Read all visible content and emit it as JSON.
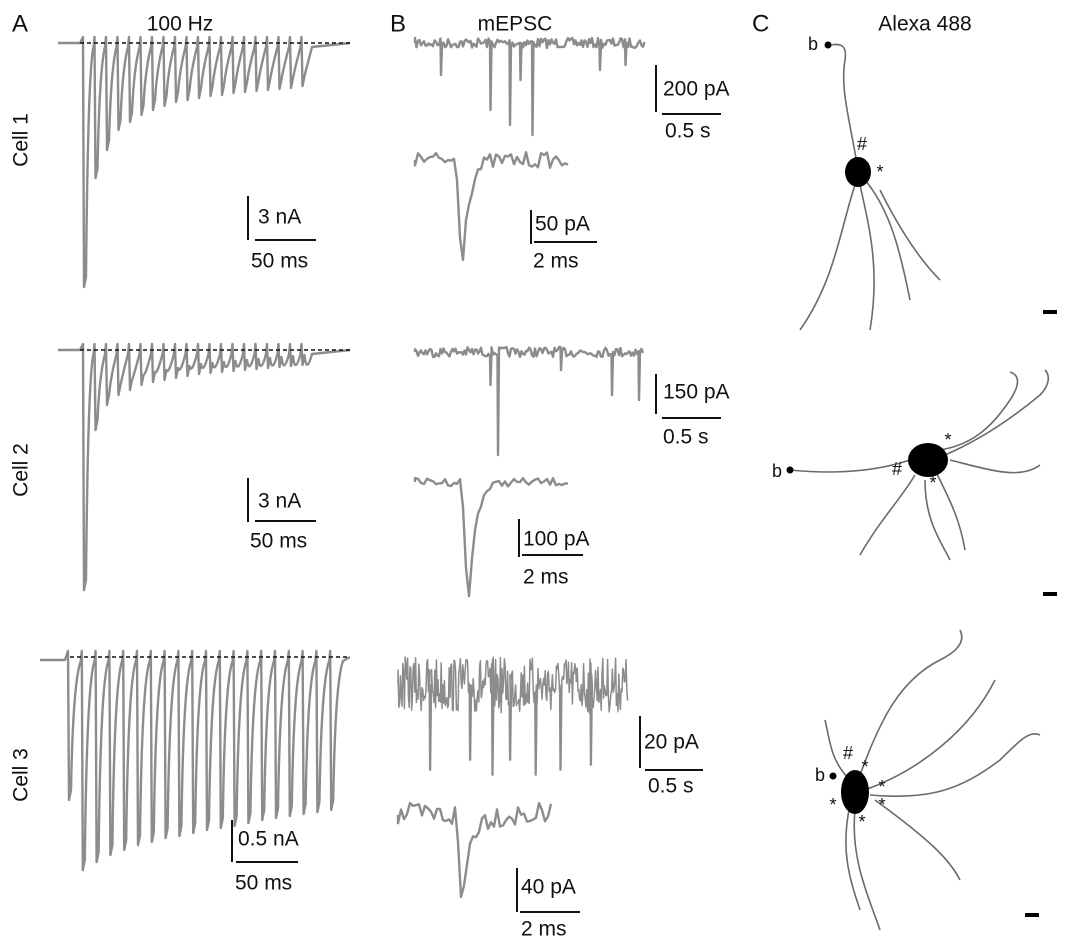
{
  "panels": [
    {
      "letter": "A",
      "title": "100 Hz"
    },
    {
      "letter": "B",
      "title": "mEPSC"
    },
    {
      "letter": "C",
      "title": "Alexa 488"
    }
  ],
  "rows": [
    {
      "label": "Cell 1",
      "a_scale": {
        "y": "3 nA",
        "x": "50 ms"
      },
      "b_scale": {
        "y": "200 pA",
        "x": "0.5 s"
      },
      "b_inset_scale": {
        "y": "50 pA",
        "x": "2 ms"
      },
      "c_marks": [
        "b",
        "#",
        "*"
      ]
    },
    {
      "label": "Cell 2",
      "a_scale": {
        "y": "3 nA",
        "x": "50 ms"
      },
      "b_scale": {
        "y": "150 pA",
        "x": "0.5 s"
      },
      "b_inset_scale": {
        "y": "100 pA",
        "x": "2 ms"
      },
      "c_marks": [
        "b",
        "#",
        "*",
        "*"
      ]
    },
    {
      "label": "Cell 3",
      "a_scale": {
        "y": "0.5 nA",
        "x": "50 ms"
      },
      "b_scale": {
        "y": "20 pA",
        "x": "0.5 s"
      },
      "b_inset_scale": {
        "y": "40 pA",
        "x": "2 ms"
      },
      "c_marks": [
        "b",
        "#",
        "*",
        "*",
        "*",
        "*",
        "*"
      ]
    }
  ]
}
